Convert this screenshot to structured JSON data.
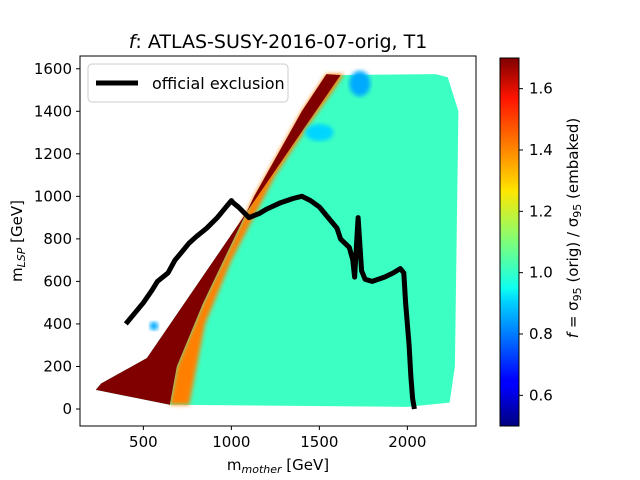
{
  "chart_data": {
    "type": "heatmap",
    "title_prefix": "f",
    "title": ": ATLAS-SUSY-2016-07-orig, T1",
    "xlabel": "m",
    "xlabel_sub": "mother",
    "xlabel_unit": " [GeV]",
    "ylabel": "m",
    "ylabel_sub": "LSP",
    "ylabel_unit": " [GeV]",
    "xlim": [
      140,
      2390
    ],
    "ylim": [
      -80,
      1660
    ],
    "xticks": [
      500,
      1000,
      1500,
      2000
    ],
    "yticks": [
      0,
      200,
      400,
      600,
      800,
      1000,
      1200,
      1400,
      1600
    ],
    "colorbar": {
      "label": "f = σ95 (orig) / σ95 (embaked)",
      "label_f": "f",
      "label_eq": " = σ",
      "label_sub1": "95",
      "label_mid": " (orig) / σ",
      "label_sub2": "95",
      "label_end": " (embaked)",
      "range": [
        0.5,
        1.7
      ],
      "ticks": [
        0.6,
        0.8,
        1.0,
        1.2,
        1.4,
        1.6
      ],
      "colormap": "jet"
    },
    "region_outline": [
      [
        230,
        90
      ],
      [
        650,
        20
      ],
      [
        2000,
        10
      ],
      [
        2240,
        30
      ],
      [
        2270,
        200
      ],
      [
        2290,
        1400
      ],
      [
        2230,
        1560
      ],
      [
        2160,
        1575
      ],
      [
        1620,
        1570
      ],
      [
        520,
        240
      ],
      [
        260,
        120
      ]
    ],
    "high_band": {
      "value": 1.7,
      "outline": [
        [
          230,
          90
        ],
        [
          650,
          20
        ],
        [
          690,
          200
        ],
        [
          840,
          500
        ],
        [
          1130,
          1000
        ],
        [
          1400,
          1400
        ],
        [
          1540,
          1575
        ],
        [
          1620,
          1570
        ],
        [
          520,
          240
        ],
        [
          260,
          120
        ]
      ]
    },
    "transition_band": {
      "value": 1.4,
      "outline": [
        [
          650,
          20
        ],
        [
          760,
          20
        ],
        [
          850,
          400
        ],
        [
          1000,
          700
        ],
        [
          1250,
          1100
        ],
        [
          1450,
          1350
        ],
        [
          1580,
          1500
        ],
        [
          1640,
          1575
        ],
        [
          1540,
          1575
        ],
        [
          1400,
          1400
        ],
        [
          1130,
          1000
        ],
        [
          840,
          500
        ],
        [
          690,
          200
        ]
      ]
    },
    "blue_spots": [
      {
        "x": 1730,
        "y": 1530,
        "rx": 60,
        "ry": 60,
        "value": 0.85
      },
      {
        "x": 1500,
        "y": 1300,
        "rx": 80,
        "ry": 40,
        "value": 0.9
      },
      {
        "x": 560,
        "y": 390,
        "rx": 25,
        "ry": 20,
        "value": 0.85
      }
    ],
    "base_value": 1.02,
    "series": [
      {
        "name": "official exclusion",
        "color": "#000000",
        "x": [
          400,
          450,
          500,
          550,
          580,
          640,
          680,
          700,
          760,
          800,
          860,
          920,
          950,
          980,
          1000,
          1010,
          1040,
          1100,
          1160,
          1200,
          1280,
          1350,
          1400,
          1450,
          1500,
          1550,
          1600,
          1620,
          1670,
          1690,
          1700,
          1720,
          1740,
          1760,
          1800,
          1870,
          1920,
          1960,
          1980,
          1990,
          2010,
          2020,
          2030,
          2040
        ],
        "y": [
          400,
          450,
          500,
          560,
          600,
          640,
          700,
          720,
          780,
          810,
          850,
          900,
          930,
          960,
          980,
          970,
          950,
          900,
          920,
          940,
          970,
          990,
          1000,
          980,
          950,
          900,
          850,
          800,
          760,
          700,
          620,
          900,
          650,
          610,
          600,
          620,
          640,
          660,
          640,
          500,
          300,
          150,
          50,
          0
        ]
      }
    ],
    "legend": {
      "location": "upper left",
      "entries": [
        "official exclusion"
      ]
    },
    "grid": false
  }
}
